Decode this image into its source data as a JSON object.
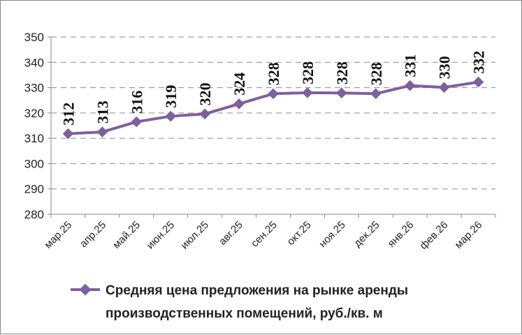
{
  "chart_data": {
    "type": "line",
    "categories": [
      "мар.25",
      "апр.25",
      "май.25",
      "июн.25",
      "июл.25",
      "авг.25",
      "сен.25",
      "окт.25",
      "ноя.25",
      "дек.25",
      "янв.26",
      "фев.26",
      "мар.26"
    ],
    "series": [
      {
        "name": "Средняя цена предложения на рынке аренды производственных помещений,  руб./кв. м",
        "values": [
          312,
          313,
          316,
          319,
          320,
          324,
          328,
          328,
          328,
          328,
          331,
          330,
          332
        ],
        "plotted": [
          311.8,
          312.5,
          316.5,
          318.7,
          319.6,
          323.6,
          327.6,
          328.0,
          327.9,
          327.6,
          330.8,
          330.1,
          332.2
        ],
        "color": "#7f5f9f"
      }
    ],
    "ylim": [
      280,
      350
    ],
    "yticks": [
      280,
      290,
      300,
      310,
      320,
      330,
      340,
      350
    ],
    "grid": "horizontal-dashed",
    "legend_position": "bottom",
    "legend_lines": [
      "Средняя цена предложения на рынке аренды",
      "производственных помещений,  руб./кв. м"
    ]
  }
}
